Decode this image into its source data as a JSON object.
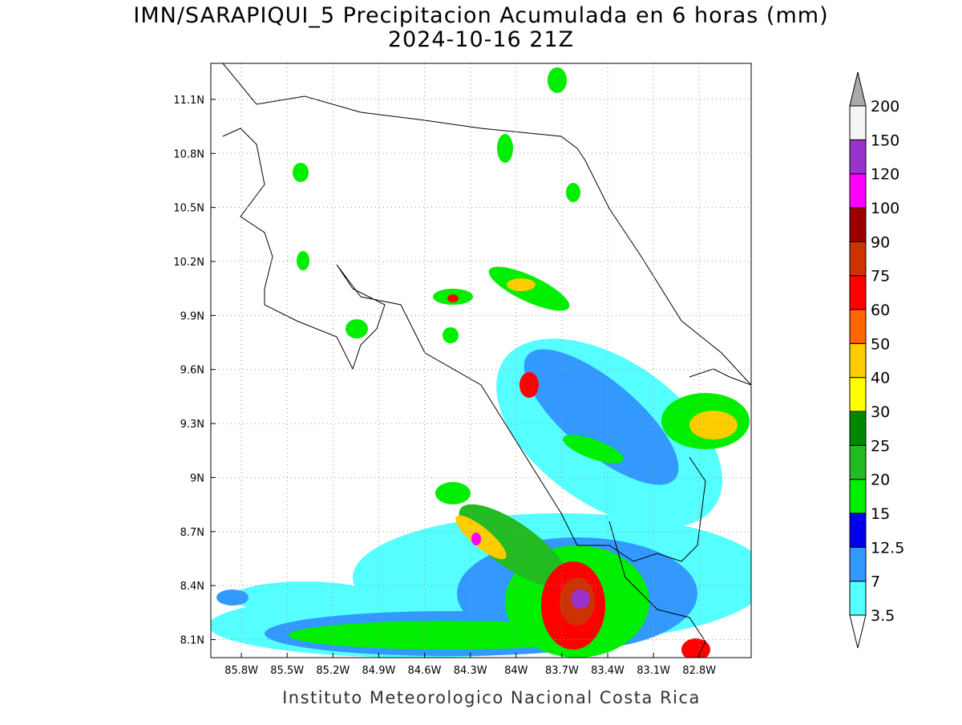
{
  "title": "IMN/SARAPIQUI_5 Precipitacion Acumulada en 6 horas (mm)",
  "subtitle": "2024-10-16 21Z",
  "map": {
    "lon_range": [
      -86.0,
      -82.46
    ],
    "lat_range": [
      8.0,
      11.3
    ],
    "lon_ticks": [
      {
        "value": -85.8,
        "label": "85.8W"
      },
      {
        "value": -85.5,
        "label": "85.5W"
      },
      {
        "value": -85.2,
        "label": "85.2W"
      },
      {
        "value": -84.9,
        "label": "84.9W"
      },
      {
        "value": -84.6,
        "label": "84.6W"
      },
      {
        "value": -84.3,
        "label": "84.3W"
      },
      {
        "value": -84.0,
        "label": "84W"
      },
      {
        "value": -83.7,
        "label": "83.7W"
      },
      {
        "value": -83.4,
        "label": "83.4W"
      },
      {
        "value": -83.1,
        "label": "83.1W"
      },
      {
        "value": -82.8,
        "label": "82.8W"
      }
    ],
    "lat_ticks": [
      {
        "value": 8.1,
        "label": "8.1N"
      },
      {
        "value": 8.4,
        "label": "8.4N"
      },
      {
        "value": 8.7,
        "label": "8.7N"
      },
      {
        "value": 9.0,
        "label": "9N"
      },
      {
        "value": 9.3,
        "label": "9.3N"
      },
      {
        "value": 9.6,
        "label": "9.6N"
      },
      {
        "value": 9.9,
        "label": "9.9N"
      },
      {
        "value": 10.2,
        "label": "10.2N"
      },
      {
        "value": 10.5,
        "label": "10.5N"
      },
      {
        "value": 10.8,
        "label": "10.8N"
      },
      {
        "value": 11.1,
        "label": "11.1N"
      }
    ],
    "grid": true
  },
  "colorbar": {
    "levels": [
      3.5,
      7,
      12.5,
      15,
      20,
      25,
      30,
      40,
      50,
      60,
      75,
      90,
      100,
      120,
      150,
      200
    ],
    "colors": [
      "#ffffff",
      "#55ffff",
      "#3399ff",
      "#0000ee",
      "#00ee00",
      "#22bb22",
      "#008800",
      "#ffff00",
      "#ffcc00",
      "#ff6600",
      "#ff0000",
      "#cc3300",
      "#990000",
      "#ff00ff",
      "#9933cc",
      "#f5f5f5",
      "#aaaaaa"
    ]
  },
  "footer": "Instituto Meteorologico Nacional Costa Rica"
}
